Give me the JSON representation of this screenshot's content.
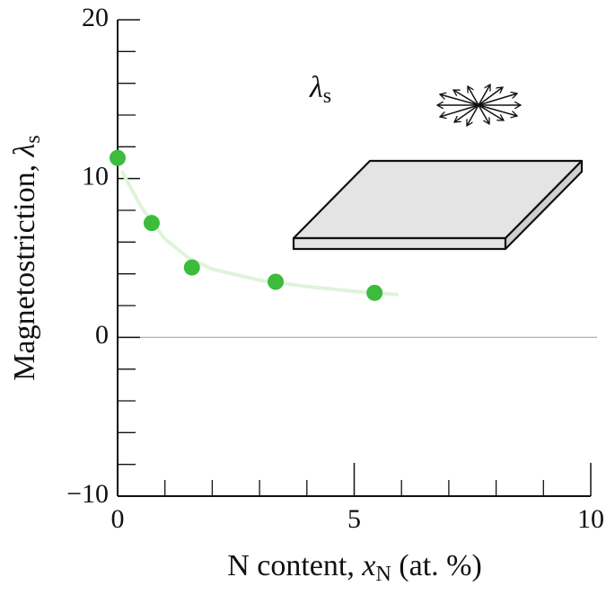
{
  "chart_data": {
    "type": "scatter",
    "ylabel": {
      "text": "Magnetostriction, ",
      "symbol": "λ",
      "sub": "s"
    },
    "xlabel": {
      "text": "N content, ",
      "symbol": "x",
      "sub": "N",
      "after": " (at. %)"
    },
    "annotation": {
      "symbol": "λ",
      "sub": "s"
    },
    "xlim": [
      0,
      10
    ],
    "ylim": [
      -10,
      20
    ],
    "xticks": [
      0,
      5,
      10
    ],
    "yticks": [
      {
        "value": -10,
        "label": "−10"
      },
      0,
      10,
      20
    ],
    "xminor_ticks": [
      1,
      2,
      3,
      4,
      6,
      7,
      8,
      9
    ],
    "yminor_ticks": [
      -8,
      -6,
      -4,
      -2,
      2,
      4,
      6,
      8,
      12,
      14,
      16,
      18
    ],
    "zero_line": true,
    "series": [
      {
        "color": "#3dbb3d",
        "x": [
          0,
          0.72,
          1.57,
          3.34,
          5.43
        ],
        "values": [
          11.3,
          7.2,
          4.4,
          3.5,
          2.8
        ]
      },
      {
        "type": "line",
        "color": "#dff4da",
        "x": [
          0.1,
          0.5,
          1,
          1.5,
          2,
          3,
          4,
          5,
          5.9
        ],
        "values": [
          10.4,
          8.2,
          6.2,
          5.0,
          4.3,
          3.6,
          3.2,
          2.9,
          2.7
        ]
      }
    ]
  }
}
